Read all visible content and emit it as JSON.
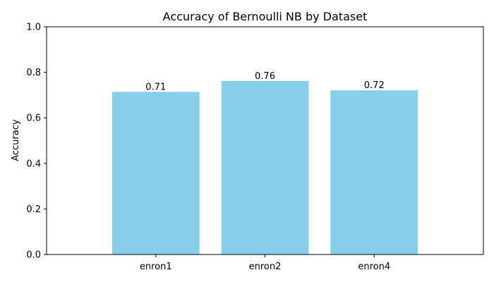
{
  "chart_data": {
    "type": "bar",
    "title": "Accuracy of Bernoulli NB by Dataset",
    "xlabel": "",
    "ylabel": "Accuracy",
    "categories": [
      "enron1",
      "enron2",
      "enron4"
    ],
    "values": [
      0.714,
      0.762,
      0.721
    ],
    "value_labels": [
      "0.71",
      "0.76",
      "0.72"
    ],
    "ylim": [
      0,
      1.0
    ],
    "yticks": [
      0.0,
      0.2,
      0.4,
      0.6,
      0.8,
      1.0
    ],
    "ytick_labels": [
      "0.0",
      "0.2",
      "0.4",
      "0.6",
      "0.8",
      "1.0"
    ],
    "bar_color": "#87ceeb",
    "grid": false,
    "legend": "none"
  }
}
